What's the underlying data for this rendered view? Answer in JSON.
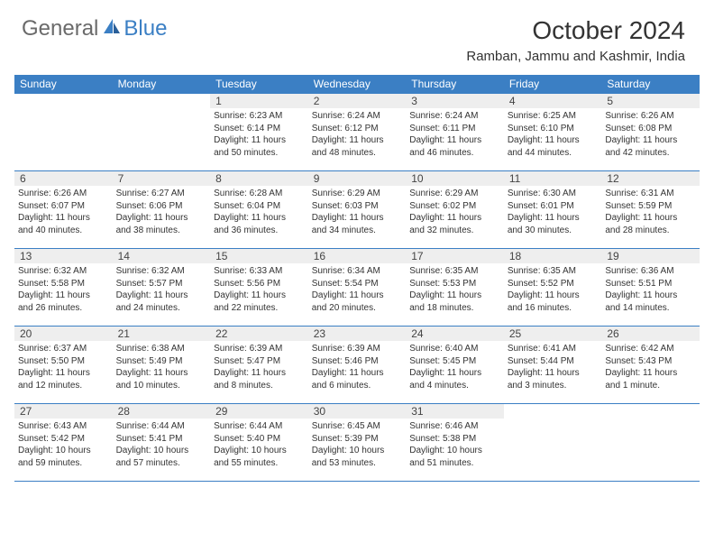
{
  "brand": {
    "name_part1": "General",
    "name_part2": "Blue"
  },
  "title": "October 2024",
  "location": "Ramban, Jammu and Kashmir, India",
  "colors": {
    "header_bg": "#3b7fc4",
    "header_text": "#ffffff",
    "day_number_bg": "#eeeeee",
    "border": "#3b7fc4",
    "text": "#333333",
    "logo_gray": "#6a6a6a",
    "logo_blue": "#3b7fc4"
  },
  "daysOfWeek": [
    "Sunday",
    "Monday",
    "Tuesday",
    "Wednesday",
    "Thursday",
    "Friday",
    "Saturday"
  ],
  "weeks": [
    [
      {
        "blank": true
      },
      {
        "blank": true
      },
      {
        "day": "1",
        "sunrise": "Sunrise: 6:23 AM",
        "sunset": "Sunset: 6:14 PM",
        "daylight1": "Daylight: 11 hours",
        "daylight2": "and 50 minutes."
      },
      {
        "day": "2",
        "sunrise": "Sunrise: 6:24 AM",
        "sunset": "Sunset: 6:12 PM",
        "daylight1": "Daylight: 11 hours",
        "daylight2": "and 48 minutes."
      },
      {
        "day": "3",
        "sunrise": "Sunrise: 6:24 AM",
        "sunset": "Sunset: 6:11 PM",
        "daylight1": "Daylight: 11 hours",
        "daylight2": "and 46 minutes."
      },
      {
        "day": "4",
        "sunrise": "Sunrise: 6:25 AM",
        "sunset": "Sunset: 6:10 PM",
        "daylight1": "Daylight: 11 hours",
        "daylight2": "and 44 minutes."
      },
      {
        "day": "5",
        "sunrise": "Sunrise: 6:26 AM",
        "sunset": "Sunset: 6:08 PM",
        "daylight1": "Daylight: 11 hours",
        "daylight2": "and 42 minutes."
      }
    ],
    [
      {
        "day": "6",
        "sunrise": "Sunrise: 6:26 AM",
        "sunset": "Sunset: 6:07 PM",
        "daylight1": "Daylight: 11 hours",
        "daylight2": "and 40 minutes."
      },
      {
        "day": "7",
        "sunrise": "Sunrise: 6:27 AM",
        "sunset": "Sunset: 6:06 PM",
        "daylight1": "Daylight: 11 hours",
        "daylight2": "and 38 minutes."
      },
      {
        "day": "8",
        "sunrise": "Sunrise: 6:28 AM",
        "sunset": "Sunset: 6:04 PM",
        "daylight1": "Daylight: 11 hours",
        "daylight2": "and 36 minutes."
      },
      {
        "day": "9",
        "sunrise": "Sunrise: 6:29 AM",
        "sunset": "Sunset: 6:03 PM",
        "daylight1": "Daylight: 11 hours",
        "daylight2": "and 34 minutes."
      },
      {
        "day": "10",
        "sunrise": "Sunrise: 6:29 AM",
        "sunset": "Sunset: 6:02 PM",
        "daylight1": "Daylight: 11 hours",
        "daylight2": "and 32 minutes."
      },
      {
        "day": "11",
        "sunrise": "Sunrise: 6:30 AM",
        "sunset": "Sunset: 6:01 PM",
        "daylight1": "Daylight: 11 hours",
        "daylight2": "and 30 minutes."
      },
      {
        "day": "12",
        "sunrise": "Sunrise: 6:31 AM",
        "sunset": "Sunset: 5:59 PM",
        "daylight1": "Daylight: 11 hours",
        "daylight2": "and 28 minutes."
      }
    ],
    [
      {
        "day": "13",
        "sunrise": "Sunrise: 6:32 AM",
        "sunset": "Sunset: 5:58 PM",
        "daylight1": "Daylight: 11 hours",
        "daylight2": "and 26 minutes."
      },
      {
        "day": "14",
        "sunrise": "Sunrise: 6:32 AM",
        "sunset": "Sunset: 5:57 PM",
        "daylight1": "Daylight: 11 hours",
        "daylight2": "and 24 minutes."
      },
      {
        "day": "15",
        "sunrise": "Sunrise: 6:33 AM",
        "sunset": "Sunset: 5:56 PM",
        "daylight1": "Daylight: 11 hours",
        "daylight2": "and 22 minutes."
      },
      {
        "day": "16",
        "sunrise": "Sunrise: 6:34 AM",
        "sunset": "Sunset: 5:54 PM",
        "daylight1": "Daylight: 11 hours",
        "daylight2": "and 20 minutes."
      },
      {
        "day": "17",
        "sunrise": "Sunrise: 6:35 AM",
        "sunset": "Sunset: 5:53 PM",
        "daylight1": "Daylight: 11 hours",
        "daylight2": "and 18 minutes."
      },
      {
        "day": "18",
        "sunrise": "Sunrise: 6:35 AM",
        "sunset": "Sunset: 5:52 PM",
        "daylight1": "Daylight: 11 hours",
        "daylight2": "and 16 minutes."
      },
      {
        "day": "19",
        "sunrise": "Sunrise: 6:36 AM",
        "sunset": "Sunset: 5:51 PM",
        "daylight1": "Daylight: 11 hours",
        "daylight2": "and 14 minutes."
      }
    ],
    [
      {
        "day": "20",
        "sunrise": "Sunrise: 6:37 AM",
        "sunset": "Sunset: 5:50 PM",
        "daylight1": "Daylight: 11 hours",
        "daylight2": "and 12 minutes."
      },
      {
        "day": "21",
        "sunrise": "Sunrise: 6:38 AM",
        "sunset": "Sunset: 5:49 PM",
        "daylight1": "Daylight: 11 hours",
        "daylight2": "and 10 minutes."
      },
      {
        "day": "22",
        "sunrise": "Sunrise: 6:39 AM",
        "sunset": "Sunset: 5:47 PM",
        "daylight1": "Daylight: 11 hours",
        "daylight2": "and 8 minutes."
      },
      {
        "day": "23",
        "sunrise": "Sunrise: 6:39 AM",
        "sunset": "Sunset: 5:46 PM",
        "daylight1": "Daylight: 11 hours",
        "daylight2": "and 6 minutes."
      },
      {
        "day": "24",
        "sunrise": "Sunrise: 6:40 AM",
        "sunset": "Sunset: 5:45 PM",
        "daylight1": "Daylight: 11 hours",
        "daylight2": "and 4 minutes."
      },
      {
        "day": "25",
        "sunrise": "Sunrise: 6:41 AM",
        "sunset": "Sunset: 5:44 PM",
        "daylight1": "Daylight: 11 hours",
        "daylight2": "and 3 minutes."
      },
      {
        "day": "26",
        "sunrise": "Sunrise: 6:42 AM",
        "sunset": "Sunset: 5:43 PM",
        "daylight1": "Daylight: 11 hours",
        "daylight2": "and 1 minute."
      }
    ],
    [
      {
        "day": "27",
        "sunrise": "Sunrise: 6:43 AM",
        "sunset": "Sunset: 5:42 PM",
        "daylight1": "Daylight: 10 hours",
        "daylight2": "and 59 minutes."
      },
      {
        "day": "28",
        "sunrise": "Sunrise: 6:44 AM",
        "sunset": "Sunset: 5:41 PM",
        "daylight1": "Daylight: 10 hours",
        "daylight2": "and 57 minutes."
      },
      {
        "day": "29",
        "sunrise": "Sunrise: 6:44 AM",
        "sunset": "Sunset: 5:40 PM",
        "daylight1": "Daylight: 10 hours",
        "daylight2": "and 55 minutes."
      },
      {
        "day": "30",
        "sunrise": "Sunrise: 6:45 AM",
        "sunset": "Sunset: 5:39 PM",
        "daylight1": "Daylight: 10 hours",
        "daylight2": "and 53 minutes."
      },
      {
        "day": "31",
        "sunrise": "Sunrise: 6:46 AM",
        "sunset": "Sunset: 5:38 PM",
        "daylight1": "Daylight: 10 hours",
        "daylight2": "and 51 minutes."
      },
      {
        "blank": true
      },
      {
        "blank": true
      }
    ]
  ]
}
